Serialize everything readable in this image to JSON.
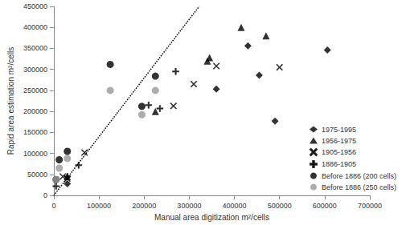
{
  "chart_data": {
    "type": "scatter",
    "x_label": "Manual area digitization m²/cells",
    "y_label": "Rapid area estimation m²/cells",
    "xlim": [
      0,
      700000
    ],
    "xticks": [
      0,
      100000,
      200000,
      300000,
      400000,
      500000,
      600000,
      700000
    ],
    "ylim": [
      0,
      450000
    ],
    "yticks": [
      0,
      50000,
      100000,
      150000,
      200000,
      250000,
      300000,
      350000,
      400000,
      450000
    ],
    "grid": false,
    "legend": "lower right",
    "series": [
      {
        "name": "1975-1995",
        "color": "#000000",
        "marker": "diamond",
        "values": [
          [
            606000,
            346000
          ],
          [
            430000,
            356000
          ],
          [
            455000,
            286000
          ],
          [
            490000,
            177000
          ],
          [
            360000,
            253000
          ],
          [
            30000,
            28000
          ]
        ]
      },
      {
        "name": "1956-1975",
        "color": "#000000",
        "marker": "triangle",
        "values": [
          [
            470000,
            380000
          ],
          [
            415000,
            400000
          ],
          [
            345000,
            328000
          ],
          [
            340000,
            320000
          ],
          [
            225000,
            200000
          ],
          [
            30000,
            45000
          ]
        ]
      },
      {
        "name": "1905-1956",
        "color": "#000000",
        "marker": "x",
        "values": [
          [
            360000,
            308000
          ],
          [
            310000,
            265000
          ],
          [
            265000,
            213000
          ],
          [
            500000,
            305000
          ],
          [
            68000,
            102000
          ],
          [
            20000,
            45000
          ],
          [
            30000,
            40000
          ]
        ]
      },
      {
        "name": "1886-1905",
        "color": "#000000",
        "marker": "plus",
        "values": [
          [
            270000,
            295000
          ],
          [
            210000,
            215000
          ],
          [
            235000,
            207000
          ],
          [
            5000,
            22000
          ],
          [
            55000,
            72000
          ],
          [
            30000,
            45000
          ]
        ]
      },
      {
        "name": "Before 1886 (200 cells)",
        "color": "#000000",
        "marker": "circle",
        "values": [
          [
            125000,
            312000
          ],
          [
            225000,
            284000
          ],
          [
            195000,
            212000
          ],
          [
            30000,
            105000
          ],
          [
            12000,
            85000
          ],
          [
            5000,
            38000
          ]
        ]
      },
      {
        "name": "Before 1886 (250 cells)",
        "color": "#999999",
        "marker": "circle",
        "values": [
          [
            125000,
            250000
          ],
          [
            225000,
            250000
          ],
          [
            195000,
            192000
          ],
          [
            30000,
            88000
          ],
          [
            12000,
            65000
          ],
          [
            5000,
            38000
          ]
        ]
      },
      {
        "type": "line",
        "color": "#000000",
        "line_style": "dotted",
        "values": [
          [
            0,
            0
          ],
          [
            322000,
            450000
          ]
        ]
      }
    ]
  }
}
